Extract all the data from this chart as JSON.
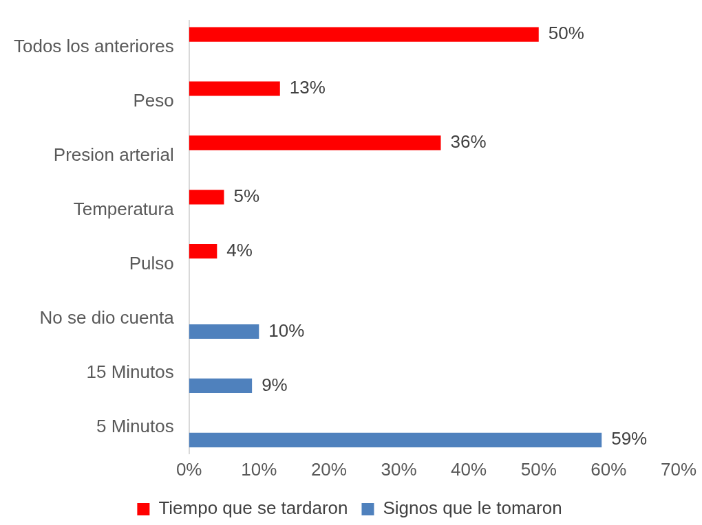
{
  "chart_data": {
    "type": "bar",
    "orientation": "horizontal",
    "categories": [
      "Todos los anteriores",
      "Peso",
      "Presion arterial",
      "Temperatura",
      "Pulso",
      "No se dio cuenta",
      "15 Minutos",
      "5 Minutos"
    ],
    "series": [
      {
        "name": "Tiempo que se tardaron",
        "color": "#ff0000",
        "values": [
          50,
          13,
          36,
          5,
          4,
          null,
          null,
          null
        ],
        "value_labels": [
          "50%",
          "13%",
          "36%",
          "5%",
          "4%",
          null,
          null,
          null
        ]
      },
      {
        "name": "Signos que le tomaron",
        "color": "#4f81bd",
        "values": [
          null,
          null,
          null,
          null,
          null,
          10,
          9,
          59
        ],
        "value_labels": [
          null,
          null,
          null,
          null,
          null,
          "10%",
          "9%",
          "59%"
        ]
      }
    ],
    "xlim": [
      0,
      70
    ],
    "xticks": [
      {
        "value": 0,
        "label": "0%"
      },
      {
        "value": 10,
        "label": "10%"
      },
      {
        "value": 20,
        "label": "20%"
      },
      {
        "value": 30,
        "label": "30%"
      },
      {
        "value": 40,
        "label": "40%"
      },
      {
        "value": 50,
        "label": "50%"
      },
      {
        "value": 60,
        "label": "60%"
      },
      {
        "value": 70,
        "label": "70%"
      }
    ],
    "grid": false,
    "legend": "bottom"
  }
}
